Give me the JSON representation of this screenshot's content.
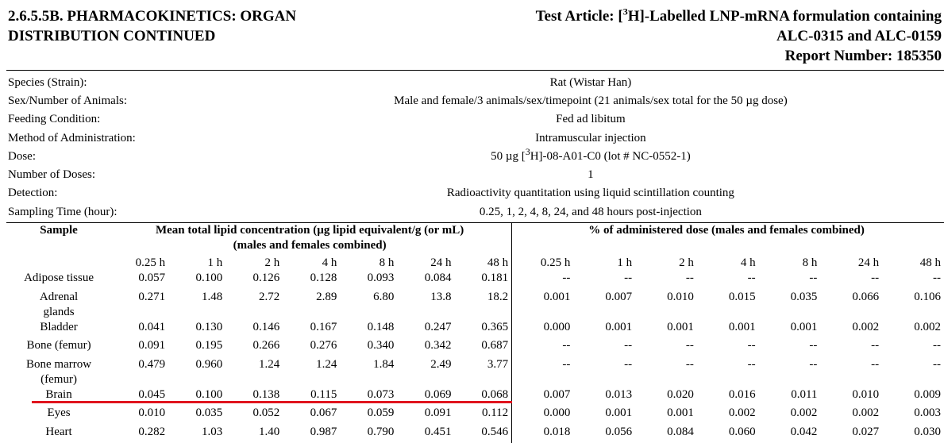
{
  "header": {
    "section": [
      "2.6.5.5B.  PHARMACOKINETICS: ORGAN",
      "DISTRIBUTION CONTINUED"
    ],
    "test_article": {
      "prefix": "Test Article: [",
      "sup": "3",
      "suffix": "H]-Labelled LNP-mRNA formulation containing"
    },
    "right_lines": [
      "ALC-0315 and ALC-0159",
      "Report Number: 185350"
    ]
  },
  "info": [
    {
      "label": "Species (Strain):",
      "value": "Rat (Wistar Han)"
    },
    {
      "label": "Sex/Number of Animals:",
      "value": "Male and female/3 animals/sex/timepoint (21 animals/sex total for the 50 µg dose)"
    },
    {
      "label": "Feeding Condition:",
      "value": "Fed ad libitum"
    },
    {
      "label": "Method of Administration:",
      "value": "Intramuscular injection"
    },
    {
      "label": "Dose:",
      "value": {
        "prefix": "50 µg [",
        "sup": "3",
        "suffix": "H]-08-A01-C0 (lot # NC-0552-1)"
      }
    },
    {
      "label": "Number of Doses:",
      "value": "1"
    },
    {
      "label": "Detection:",
      "value": "Radioactivity quantitation using liquid scintillation counting"
    },
    {
      "label": "Sampling Time (hour):",
      "value": "0.25, 1, 2, 4, 8, 24, and 48 hours post-injection"
    }
  ],
  "table": {
    "sample_header": "Sample",
    "conc_header": [
      "Mean total lipid concentration (µg lipid equivalent/g (or mL)",
      "(males and females combined)"
    ],
    "dose_header": "% of administered dose (males and females combined)",
    "conc_times": [
      "0.25 h",
      "1 h",
      "2 h",
      "4 h",
      "8 h",
      "24 h",
      "48 h"
    ],
    "dose_times": [
      "0.25 h",
      "1 h",
      "2 h",
      "4 h",
      "8 h",
      "24 h",
      "48 h"
    ],
    "rows": [
      {
        "sample": "Adipose tissue",
        "conc": [
          "0.057",
          "0.100",
          "0.126",
          "0.128",
          "0.093",
          "0.084",
          "0.181"
        ],
        "dose": [
          "--",
          "--",
          "--",
          "--",
          "--",
          "--",
          "--"
        ]
      },
      {
        "sample": "Adrenal glands",
        "conc": [
          "0.271",
          "1.48",
          "2.72",
          "2.89",
          "6.80",
          "13.8",
          "18.2"
        ],
        "dose": [
          "0.001",
          "0.007",
          "0.010",
          "0.015",
          "0.035",
          "0.066",
          "0.106"
        ]
      },
      {
        "sample": "Bladder",
        "conc": [
          "0.041",
          "0.130",
          "0.146",
          "0.167",
          "0.148",
          "0.247",
          "0.365"
        ],
        "dose": [
          "0.000",
          "0.001",
          "0.001",
          "0.001",
          "0.001",
          "0.002",
          "0.002"
        ]
      },
      {
        "sample": "Bone (femur)",
        "conc": [
          "0.091",
          "0.195",
          "0.266",
          "0.276",
          "0.340",
          "0.342",
          "0.687"
        ],
        "dose": [
          "--",
          "--",
          "--",
          "--",
          "--",
          "--",
          "--"
        ]
      },
      {
        "sample": "Bone marrow (femur)",
        "conc": [
          "0.479",
          "0.960",
          "1.24",
          "1.24",
          "1.84",
          "2.49",
          "3.77"
        ],
        "dose": [
          "--",
          "--",
          "--",
          "--",
          "--",
          "--",
          "--"
        ]
      },
      {
        "sample": "Brain",
        "conc": [
          "0.045",
          "0.100",
          "0.138",
          "0.115",
          "0.073",
          "0.069",
          "0.068"
        ],
        "dose": [
          "0.007",
          "0.013",
          "0.020",
          "0.016",
          "0.011",
          "0.010",
          "0.009"
        ]
      },
      {
        "sample": "Eyes",
        "conc": [
          "0.010",
          "0.035",
          "0.052",
          "0.067",
          "0.059",
          "0.091",
          "0.112"
        ],
        "dose": [
          "0.000",
          "0.001",
          "0.001",
          "0.002",
          "0.002",
          "0.002",
          "0.003"
        ]
      },
      {
        "sample": "Heart",
        "conc": [
          "0.282",
          "1.03",
          "1.40",
          "0.987",
          "0.790",
          "0.451",
          "0.546"
        ],
        "dose": [
          "0.018",
          "0.056",
          "0.084",
          "0.060",
          "0.042",
          "0.027",
          "0.030"
        ]
      }
    ]
  }
}
